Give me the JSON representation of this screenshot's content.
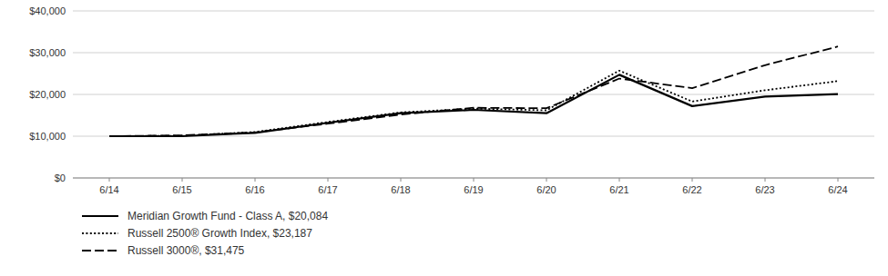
{
  "chart_data": {
    "type": "line",
    "categories": [
      "6/14",
      "6/15",
      "6/16",
      "6/17",
      "6/18",
      "6/19",
      "6/20",
      "6/21",
      "6/22",
      "6/23",
      "6/24"
    ],
    "series": [
      {
        "name": "Meridian Growth Fund - Class A, $20,084",
        "color": "#000000",
        "line_style": "solid",
        "values": [
          10000,
          10000,
          10800,
          13200,
          15500,
          16300,
          15500,
          24700,
          17200,
          19500,
          20084
        ]
      },
      {
        "name": "Russell 2500® Growth Index, $23,187",
        "color": "#000000",
        "line_style": "dotted",
        "values": [
          10000,
          10100,
          11000,
          13400,
          15700,
          16600,
          16200,
          25700,
          18300,
          21000,
          23187
        ]
      },
      {
        "name": "Russell 3000®, $31,475",
        "color": "#000000",
        "line_style": "dashed",
        "values": [
          10000,
          10200,
          10900,
          13000,
          15200,
          16800,
          16700,
          23800,
          21500,
          27000,
          31475
        ]
      }
    ],
    "ylim": [
      0,
      40000
    ],
    "yticks": [
      {
        "value": 0,
        "label": "$0"
      },
      {
        "value": 10000,
        "label": "$10,000"
      },
      {
        "value": 20000,
        "label": "$20,000"
      },
      {
        "value": 30000,
        "label": "$30,000"
      },
      {
        "value": 40000,
        "label": "$40,000"
      }
    ],
    "grid": true,
    "legend": "bottom"
  }
}
